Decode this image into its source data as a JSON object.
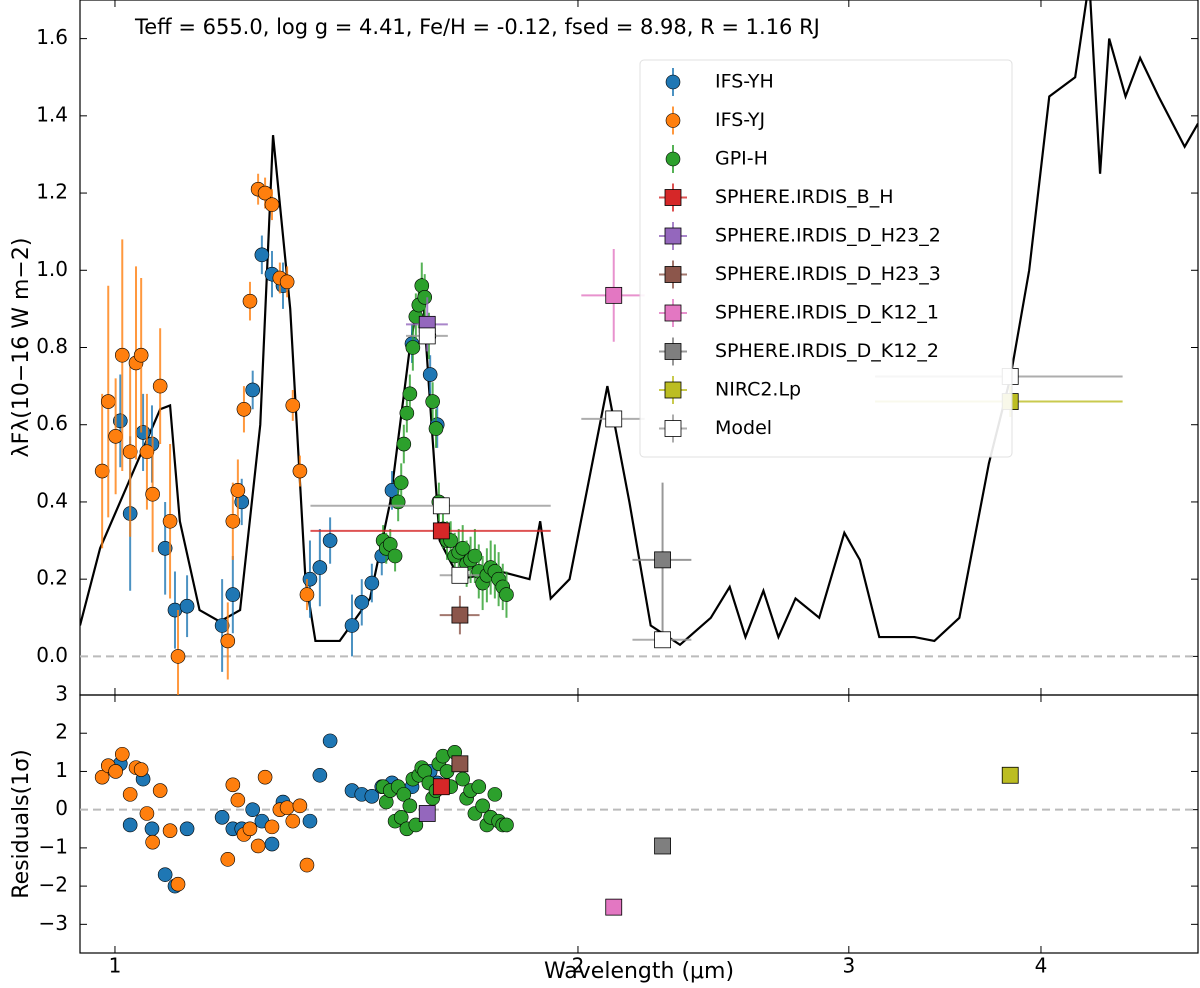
{
  "chart_data": [
    {
      "type": "errorbar",
      "annotation": "Teff = 655.0, log g = 4.41, Fe/H = -0.12, fsed = 8.98, R = 1.16 RJ",
      "ylabel": "λFλ(10−16 W m−2)",
      "xscale": "log",
      "xlim": [
        0.949,
        5.06
      ],
      "xticks": [
        1,
        2,
        3,
        4
      ],
      "ylim": [
        -0.1,
        1.7
      ],
      "yticks": [
        {
          "value": 0,
          "label": "0.0"
        },
        0.2,
        0.4,
        0.6,
        0.8,
        {
          "value": 1,
          "label": "1.0"
        },
        1.2,
        1.4,
        1.6
      ],
      "hline": 0,
      "legend": "upper right",
      "line": {
        "color": "#000000",
        "x": [
          0.949,
          0.978,
          1.07,
          1.086,
          1.102,
          1.135,
          1.17,
          1.206,
          1.243,
          1.267,
          1.3,
          1.33,
          1.35,
          1.4,
          1.465,
          1.51,
          1.555,
          1.583,
          1.6,
          1.626,
          1.675,
          1.78,
          1.86,
          1.89,
          1.92,
          1.975,
          2.09,
          2.16,
          2.23,
          2.33,
          2.44,
          2.51,
          2.57,
          2.64,
          2.7,
          2.77,
          2.87,
          2.98,
          3.05,
          3.14,
          3.31,
          3.41,
          3.54,
          3.7,
          3.82,
          3.93,
          4.05,
          4.21,
          4.3,
          4.37,
          4.43,
          4.54,
          4.64,
          4.77,
          4.96,
          5.06
        ],
        "values": [
          0.08,
          0.28,
          0.64,
          0.65,
          0.35,
          0.12,
          0.09,
          0.12,
          0.6,
          1.35,
          0.9,
          0.2,
          0.04,
          0.04,
          0.15,
          0.4,
          0.8,
          0.98,
          0.7,
          0.3,
          0.2,
          0.22,
          0.2,
          0.35,
          0.15,
          0.2,
          0.7,
          0.4,
          0.08,
          0.03,
          0.1,
          0.18,
          0.05,
          0.17,
          0.05,
          0.15,
          0.1,
          0.32,
          0.25,
          0.05,
          0.05,
          0.04,
          0.1,
          0.5,
          0.72,
          1.0,
          1.45,
          1.5,
          1.75,
          1.25,
          1.6,
          1.45,
          1.55,
          1.45,
          1.32,
          1.38
        ]
      },
      "series": [
        {
          "name": "IFS-YH",
          "color": "#1f77b4",
          "marker": "o",
          "x": [
            1.008,
            1.023,
            1.043,
            1.057,
            1.078,
            1.094,
            1.114,
            1.174,
            1.193,
            1.209,
            1.229,
            1.246,
            1.265,
            1.286,
            1.339,
            1.359,
            1.38,
            1.426,
            1.447,
            1.469,
            1.491,
            1.514,
            1.56,
            1.603,
            1.62
          ],
          "values": [
            0.61,
            0.37,
            0.58,
            0.55,
            0.28,
            0.12,
            0.13,
            0.08,
            0.16,
            0.4,
            0.69,
            1.04,
            0.99,
            0.96,
            0.2,
            0.23,
            0.3,
            0.08,
            0.14,
            0.19,
            0.26,
            0.43,
            0.81,
            0.73,
            0.6
          ],
          "errors": [
            0.12,
            0.2,
            0.1,
            0.1,
            0.12,
            0.1,
            0.08,
            0.12,
            0.1,
            0.06,
            0.05,
            0.05,
            0.06,
            0.06,
            0.1,
            0.1,
            0.06,
            0.08,
            0.06,
            0.05,
            0.05,
            0.05,
            0.05,
            0.05,
            0.06
          ],
          "residuals": [
            1.2,
            -0.4,
            0.8,
            -0.5,
            -1.7,
            -2.0,
            -0.5,
            -0.2,
            -0.5,
            -0.5,
            0.0,
            -0.3,
            -0.9,
            0.2,
            -0.3,
            0.9,
            1.8,
            0.5,
            0.4,
            0.35,
            0.6,
            0.7,
            0.6,
            1.0,
            0.7
          ]
        },
        {
          "name": "IFS-YJ",
          "color": "#ff7f0e",
          "marker": "o",
          "x": [
            0.981,
            0.99,
            1.001,
            1.011,
            1.023,
            1.032,
            1.04,
            1.049,
            1.058,
            1.07,
            1.086,
            1.099,
            1.184,
            1.193,
            1.202,
            1.213,
            1.224,
            1.239,
            1.252,
            1.265,
            1.28,
            1.294,
            1.305,
            1.319,
            1.333
          ],
          "values": [
            0.48,
            0.66,
            0.57,
            0.78,
            0.53,
            0.76,
            0.78,
            0.53,
            0.42,
            0.7,
            0.35,
            0.0,
            0.04,
            0.35,
            0.43,
            0.64,
            0.92,
            1.21,
            1.2,
            1.17,
            0.98,
            0.97,
            0.65,
            0.48,
            0.16
          ],
          "errors": [
            0.2,
            0.3,
            0.15,
            0.3,
            0.22,
            0.25,
            0.2,
            0.15,
            0.15,
            0.15,
            0.2,
            0.12,
            0.1,
            0.1,
            0.08,
            0.06,
            0.05,
            0.04,
            0.04,
            0.04,
            0.04,
            0.04,
            0.04,
            0.04,
            0.04
          ],
          "residuals": [
            0.85,
            1.15,
            1.0,
            1.45,
            0.4,
            1.1,
            1.05,
            -0.1,
            -0.85,
            0.5,
            -0.55,
            -1.95,
            -1.3,
            0.65,
            0.25,
            -0.65,
            -0.5,
            -0.95,
            0.85,
            -0.45,
            0.0,
            0.05,
            -0.3,
            0.1,
            -1.45
          ]
        },
        {
          "name": "GPI-H",
          "color": "#2ca02c",
          "marker": "o",
          "x": [
            1.494,
            1.501,
            1.51,
            1.521,
            1.528,
            1.535,
            1.541,
            1.548,
            1.555,
            1.562,
            1.569,
            1.576,
            1.583,
            1.59,
            1.6,
            1.609,
            1.617,
            1.624,
            1.634,
            1.644,
            1.653,
            1.663,
            1.673,
            1.683,
            1.693,
            1.703,
            1.714,
            1.724,
            1.734,
            1.745,
            1.755,
            1.766,
            1.776,
            1.787,
            1.797
          ],
          "values": [
            0.3,
            0.28,
            0.29,
            0.26,
            0.4,
            0.45,
            0.55,
            0.63,
            0.68,
            0.8,
            0.88,
            0.91,
            0.96,
            0.93,
            0.83,
            0.66,
            0.59,
            0.4,
            0.33,
            0.3,
            0.3,
            0.26,
            0.27,
            0.28,
            0.24,
            0.25,
            0.26,
            0.22,
            0.19,
            0.21,
            0.23,
            0.22,
            0.2,
            0.18,
            0.16
          ],
          "errors": [
            0.04,
            0.04,
            0.04,
            0.04,
            0.05,
            0.05,
            0.05,
            0.05,
            0.05,
            0.06,
            0.06,
            0.06,
            0.06,
            0.06,
            0.06,
            0.05,
            0.05,
            0.05,
            0.05,
            0.05,
            0.05,
            0.06,
            0.06,
            0.06,
            0.06,
            0.06,
            0.07,
            0.07,
            0.07,
            0.07,
            0.07,
            0.07,
            0.07,
            0.06,
            0.06
          ],
          "residuals": [
            0.6,
            0.2,
            0.5,
            -0.3,
            0.6,
            -0.2,
            0.4,
            -0.5,
            0.1,
            0.8,
            -0.4,
            0.9,
            1.1,
            1.0,
            0.7,
            0.3,
            0.5,
            1.2,
            1.4,
            1.0,
            0.6,
            1.5,
            1.2,
            0.8,
            0.3,
            0.5,
            -0.1,
            0.6,
            0.1,
            -0.4,
            -0.2,
            0.4,
            -0.3,
            -0.4,
            -0.4
          ]
        },
        {
          "name": "SPHERE.IRDIS_B_H",
          "color": "#d62728",
          "marker": "s",
          "x": [
            1.63
          ],
          "values": [
            0.325
          ],
          "errors": [
            0.02
          ],
          "xerr": [
            0.29
          ],
          "residuals": [
            0.6
          ]
        },
        {
          "name": "SPHERE.IRDIS_D_H23_2",
          "color": "#9467bd",
          "marker": "s",
          "x": [
            1.596
          ],
          "values": [
            0.86
          ],
          "errors": [
            0.07
          ],
          "xerr": [
            0.05
          ],
          "residuals": [
            -0.1
          ]
        },
        {
          "name": "SPHERE.IRDIS_D_H23_3",
          "color": "#8c564b",
          "marker": "s",
          "x": [
            1.676
          ],
          "values": [
            0.107
          ],
          "errors": [
            0.05
          ],
          "xerr": [
            0.05
          ],
          "residuals": [
            1.2
          ]
        },
        {
          "name": "SPHERE.IRDIS_D_K12_1",
          "color": "#e377c2",
          "marker": "s",
          "x": [
            2.11
          ],
          "values": [
            0.935
          ],
          "errors": [
            0.12
          ],
          "xerr": [
            0.1
          ],
          "residuals": [
            -2.55
          ]
        },
        {
          "name": "SPHERE.IRDIS_D_K12_2",
          "color": "#7f7f7f",
          "marker": "s",
          "x": [
            2.27
          ],
          "values": [
            0.25
          ],
          "errors": [
            0.2
          ],
          "xerr": [
            0.1
          ],
          "residuals": [
            -0.95
          ]
        },
        {
          "name": "NIRC2.Lp",
          "color": "#bcbd22",
          "marker": "s",
          "x": [
            3.82
          ],
          "values": [
            0.66
          ],
          "errors": [
            0.04
          ],
          "xerr": [
            0.7
          ],
          "residuals": [
            0.9
          ]
        },
        {
          "name": "Model",
          "color": "#ffffff",
          "marker": "s",
          "x": [
            1.596,
            1.63,
            1.676,
            2.11,
            2.27,
            3.82
          ],
          "values": [
            0.83,
            0.39,
            0.21,
            0.615,
            0.043,
            0.725
          ],
          "xerr": [
            0.05,
            0.29,
            0.05,
            0.1,
            0.1,
            0.7
          ]
        }
      ]
    },
    {
      "type": "scatter",
      "ylabel": "Residuals(1σ)",
      "xlabel": "Wavelength (μm)",
      "xscale": "log",
      "xlim": [
        0.949,
        5.06
      ],
      "xticks": [
        1,
        2,
        3,
        4
      ],
      "ylim": [
        -3.75,
        3
      ],
      "yticks": [
        {
          "value": -3,
          "label": "−3"
        },
        {
          "value": -2,
          "label": "−2"
        },
        {
          "value": -1,
          "label": "−1"
        },
        0,
        1,
        2,
        3
      ],
      "hline": 0
    }
  ]
}
